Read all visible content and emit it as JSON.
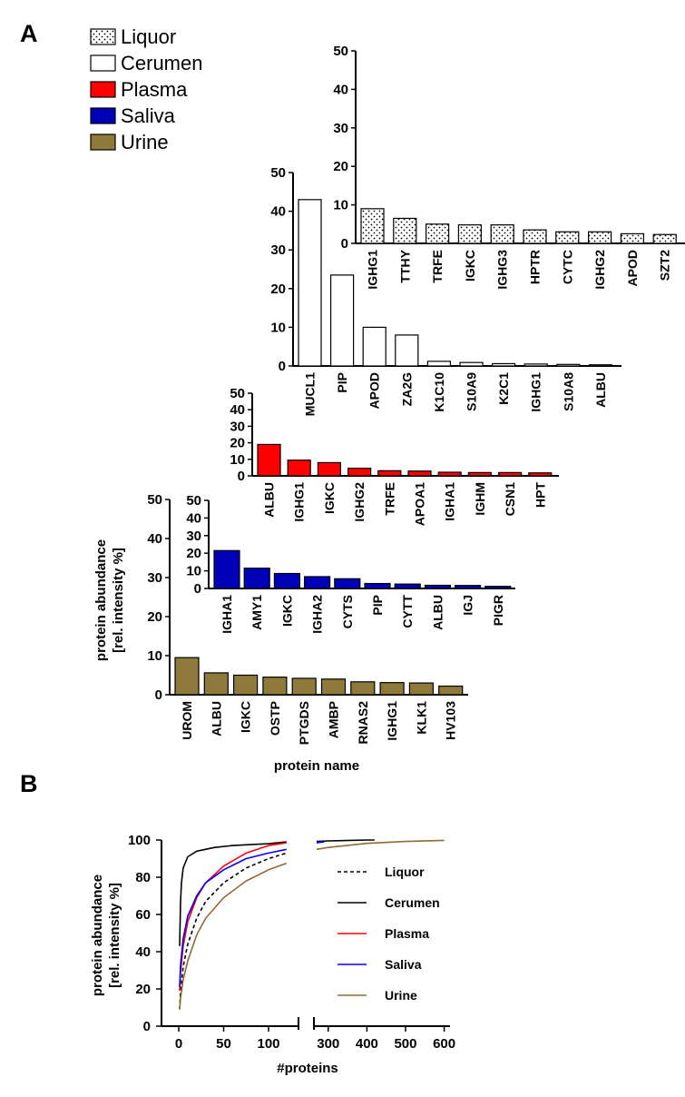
{
  "panel_a_label": "A",
  "panel_b_label": "B",
  "chart_data": [
    {
      "type": "bar",
      "panel": "A",
      "legend": [
        {
          "name": "Liquor",
          "color": "#f2f2f2",
          "pattern": "dots"
        },
        {
          "name": "Cerumen",
          "color": "#ffffff",
          "pattern": "none"
        },
        {
          "name": "Plasma",
          "color": "#ff0000",
          "pattern": "none"
        },
        {
          "name": "Saliva",
          "color": "#0000b8",
          "pattern": "none"
        },
        {
          "name": "Urine",
          "color": "#8f7a3c",
          "pattern": "none"
        }
      ],
      "ylabel": [
        "protein abundance",
        "[rel. intensity %]"
      ],
      "xlabel": "protein name",
      "ylim": [
        0,
        50
      ],
      "yticks": [
        "0",
        "10",
        "20",
        "30",
        "40",
        "50"
      ],
      "series": [
        {
          "name": "Liquor",
          "categories": [
            "IGHG1",
            "TTHY",
            "TRFE",
            "IGKC",
            "IGHG3",
            "HPTR",
            "CYTC",
            "IGHG2",
            "APOD",
            "SZT2"
          ],
          "values": [
            9,
            6.5,
            5,
            4.8,
            4.8,
            3.5,
            3,
            3,
            2.5,
            2.3
          ]
        },
        {
          "name": "Cerumen",
          "categories": [
            "MUCL1",
            "PIP",
            "APOD",
            "ZA2G",
            "K1C10",
            "S10A9",
            "K2C1",
            "IGHG1",
            "S10A8",
            "ALBU"
          ],
          "values": [
            43,
            23.5,
            10,
            8,
            1.2,
            0.9,
            0.6,
            0.5,
            0.4,
            0.3
          ]
        },
        {
          "name": "Plasma",
          "categories": [
            "ALBU",
            "IGHG1",
            "IGKC",
            "IGHG2",
            "TRFE",
            "APOA1",
            "IGHA1",
            "IGHM",
            "CSN1",
            "HPT"
          ],
          "values": [
            19,
            9.5,
            8,
            4.6,
            3.1,
            2.9,
            2.2,
            2,
            2,
            1.8
          ]
        },
        {
          "name": "Saliva",
          "categories": [
            "IGHA1",
            "AMY1",
            "IGKC",
            "IGHA2",
            "CYTS",
            "PIP",
            "CYTT",
            "ALBU",
            "IGJ",
            "PIGR"
          ],
          "values": [
            21.5,
            11.5,
            8.5,
            6.7,
            5.5,
            2.8,
            2.5,
            1.8,
            1.7,
            1.2
          ]
        },
        {
          "name": "Urine",
          "categories": [
            "UROM",
            "ALBU",
            "IGKC",
            "OSTP",
            "PTGDS",
            "AMBP",
            "RNAS2",
            "IGHG1",
            "KLK1",
            "HV103"
          ],
          "values": [
            9.5,
            5.6,
            5,
            4.5,
            4.2,
            4,
            3.3,
            3.1,
            3,
            2.2
          ]
        }
      ]
    },
    {
      "type": "line",
      "panel": "B",
      "ylabel": [
        "protein abundance",
        "[rel. intensity %]"
      ],
      "xlabel": "#proteins",
      "ylim": [
        0,
        100
      ],
      "yticks": [
        "0",
        "20",
        "40",
        "60",
        "80",
        "100"
      ],
      "x_segments": [
        {
          "range": [
            0,
            120
          ],
          "ticks": [
            "0",
            "50",
            "100"
          ]
        },
        {
          "range": [
            270,
            600
          ],
          "ticks": [
            "300",
            "400",
            "500",
            "600"
          ]
        }
      ],
      "series": [
        {
          "name": "Liquor",
          "color": "#000000",
          "dash": true,
          "points": [
            [
              1,
              9
            ],
            [
              2,
              18
            ],
            [
              5,
              32
            ],
            [
              10,
              44
            ],
            [
              20,
              58
            ],
            [
              30,
              67
            ],
            [
              50,
              77
            ],
            [
              75,
              85
            ],
            [
              100,
              90
            ],
            [
              120,
              93
            ]
          ]
        },
        {
          "name": "Cerumen",
          "color": "#000000",
          "dash": false,
          "points": [
            [
              1,
              43
            ],
            [
              2,
              67
            ],
            [
              3,
              77
            ],
            [
              5,
              85
            ],
            [
              10,
              91
            ],
            [
              20,
              94
            ],
            [
              40,
              96
            ],
            [
              60,
              97
            ],
            [
              100,
              98
            ],
            [
              120,
              99
            ],
            [
              270,
              99.2
            ],
            [
              300,
              99.5
            ],
            [
              400,
              100
            ],
            [
              420,
              100
            ]
          ]
        },
        {
          "name": "Plasma",
          "color": "#ff0000",
          "dash": false,
          "points": [
            [
              1,
              19
            ],
            [
              2,
              29
            ],
            [
              5,
              43
            ],
            [
              10,
              56
            ],
            [
              20,
              69
            ],
            [
              30,
              77
            ],
            [
              50,
              86
            ],
            [
              75,
              93
            ],
            [
              100,
              97
            ],
            [
              120,
              98.5
            ]
          ]
        },
        {
          "name": "Saliva",
          "color": "#0000ff",
          "dash": false,
          "points": [
            [
              1,
              21
            ],
            [
              2,
              33
            ],
            [
              5,
              47
            ],
            [
              10,
              59
            ],
            [
              20,
              70
            ],
            [
              30,
              77
            ],
            [
              50,
              84
            ],
            [
              75,
              90
            ],
            [
              100,
              93
            ],
            [
              120,
              95
            ],
            [
              270,
              98.5
            ],
            [
              290,
              99
            ]
          ]
        },
        {
          "name": "Urine",
          "color": "#8f6a33",
          "dash": false,
          "points": [
            [
              1,
              9
            ],
            [
              2,
              15
            ],
            [
              5,
              25
            ],
            [
              10,
              35
            ],
            [
              20,
              49
            ],
            [
              30,
              58
            ],
            [
              50,
              69
            ],
            [
              75,
              78
            ],
            [
              100,
              84
            ],
            [
              120,
              87.5
            ],
            [
              270,
              95
            ],
            [
              300,
              96
            ],
            [
              400,
              98.2
            ],
            [
              500,
              99.2
            ],
            [
              600,
              99.8
            ]
          ]
        }
      ]
    }
  ]
}
